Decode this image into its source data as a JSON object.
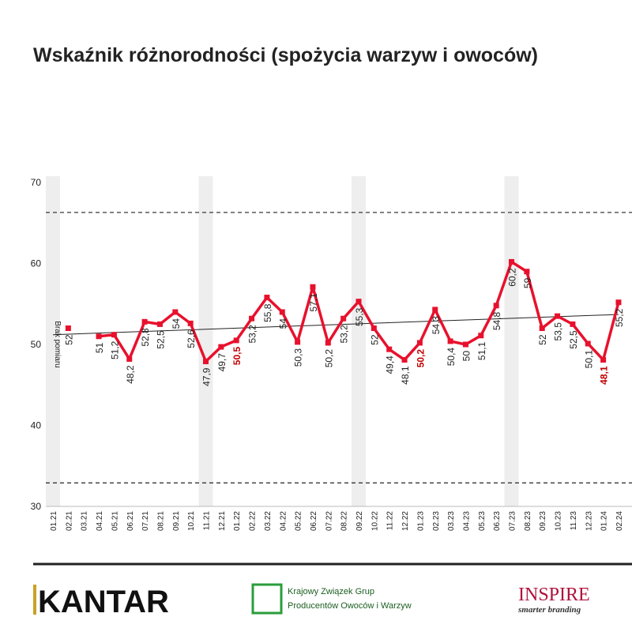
{
  "chart_data": {
    "type": "line",
    "title": "Wskaźnik różnorodności (spożycia warzyw i owoców)",
    "categories": [
      "01.21",
      "02.21",
      "03.21",
      "04.21",
      "05.21",
      "06.21",
      "07.21",
      "08.21",
      "09.21",
      "10.21",
      "11.21",
      "12.21",
      "01.22",
      "02.22",
      "03.22",
      "04.22",
      "05.22",
      "06.22",
      "07.22",
      "08.22",
      "09.22",
      "10.22",
      "11.22",
      "12.22",
      "01.23",
      "02.23",
      "03.23",
      "04.23",
      "05.23",
      "06.23",
      "07.23",
      "08.23",
      "09.23",
      "10.23",
      "11.23",
      "12.23",
      "01.24",
      "02.24"
    ],
    "series": [
      {
        "name": "Wskaźnik",
        "color": "#e8112d",
        "values": [
          null,
          52,
          null,
          51,
          51.2,
          48.2,
          52.8,
          52.5,
          54,
          52.6,
          47.9,
          49.7,
          50.5,
          53.2,
          55.8,
          54,
          50.3,
          57.1,
          50.2,
          53.2,
          55.3,
          52,
          49.4,
          48.1,
          50.2,
          54.3,
          50.4,
          50,
          51.1,
          54.8,
          60.2,
          59,
          52,
          53.5,
          52.5,
          50.1,
          48.1,
          55.2
        ],
        "value_labels": [
          null,
          "52",
          null,
          "51",
          "51,2",
          "48,2",
          "52,8",
          "52,5",
          "54",
          "52,6",
          "47,9",
          "49,7",
          "50,5",
          "53,2",
          "55,8",
          "54",
          "50,3",
          "57,1",
          "50,2",
          "53,2",
          "55,3",
          "52",
          "49,4",
          "48,1",
          "50,2",
          "54,3",
          "50,4",
          "50",
          "51,1",
          "54,8",
          "60,2",
          "59",
          "52",
          "53,5",
          "52,5",
          "50,1",
          "48,1",
          "55,2"
        ]
      }
    ],
    "highlight_label_indices": [
      12,
      24,
      36
    ],
    "highlight_label_color": "#c00000",
    "shaded_indices": [
      0,
      10,
      20,
      30
    ],
    "annotation": "Brak pomiaru",
    "trend": [
      51.2,
      53.7
    ],
    "limits": [
      66.3,
      32.9
    ],
    "ylim": [
      30,
      70
    ],
    "yticks": [
      30,
      40,
      50,
      60,
      70
    ],
    "footer": {
      "kantar": "KANTAR",
      "kzgpow_1": "Krajowy Związek Grup",
      "kzgpow_2": "Producentów Owoców i Warzyw",
      "inspire": "INSPIRE",
      "inspire_tag": "smarter branding"
    }
  }
}
